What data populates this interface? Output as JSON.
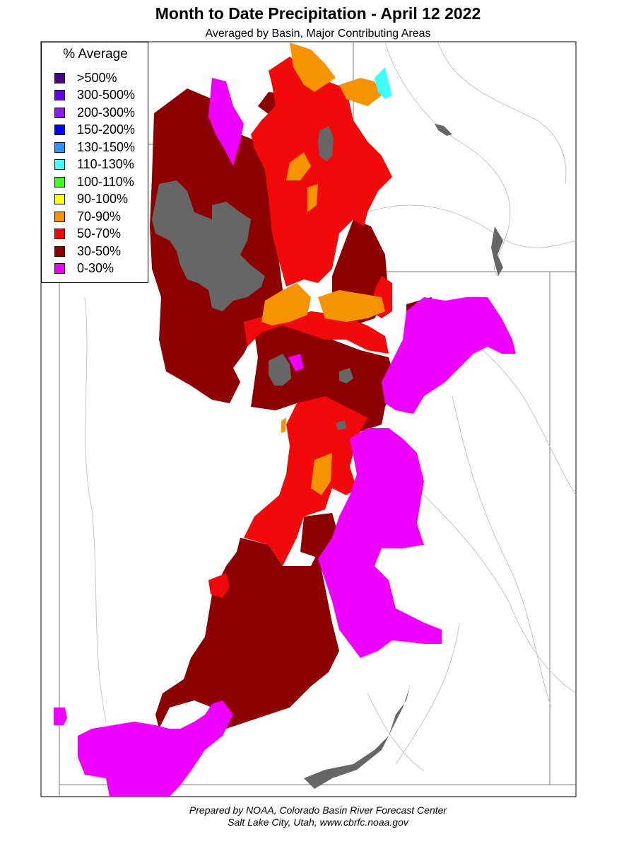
{
  "title": "Month to Date Precipitation - April 12 2022",
  "subtitle": "Averaged by Basin, Major Contributing Areas",
  "legend": {
    "title": "% Average",
    "items": [
      {
        "label": ">500%",
        "color": "#4b0082"
      },
      {
        "label": "300-500%",
        "color": "#6a00e0"
      },
      {
        "label": "200-300%",
        "color": "#8a1aff"
      },
      {
        "label": "150-200%",
        "color": "#0000ff"
      },
      {
        "label": "130-150%",
        "color": "#3090ff"
      },
      {
        "label": "110-130%",
        "color": "#40ffff"
      },
      {
        "label": "100-110%",
        "color": "#40ff20"
      },
      {
        "label": "90-100%",
        "color": "#ffff00"
      },
      {
        "label": "70-90%",
        "color": "#f59400"
      },
      {
        "label": "50-70%",
        "color": "#f00a0a"
      },
      {
        "label": "30-50%",
        "color": "#8c0000"
      },
      {
        "label": "0-30%",
        "color": "#ee00ff"
      }
    ]
  },
  "lake_color": "#666666",
  "footer": {
    "line1": "Prepared by NOAA, Colorado Basin River Forecast Center",
    "line2": "Salt Lake City, Utah, www.cbrfc.noaa.gov"
  }
}
